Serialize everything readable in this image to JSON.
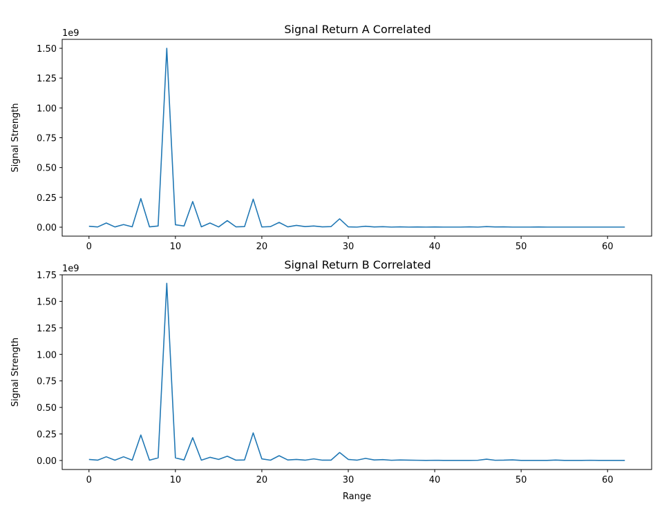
{
  "chart_data": [
    {
      "type": "line",
      "title": "Signal Return A Correlated",
      "xlabel": "",
      "ylabel": "Signal Strength",
      "y_offset_label": "1e9",
      "xlim": [
        -3.1,
        65.1
      ],
      "ylim": [
        -0.075,
        1.575
      ],
      "x_ticks": [
        0,
        10,
        20,
        30,
        40,
        50,
        60
      ],
      "x_tick_labels": [
        "0",
        "10",
        "20",
        "30",
        "40",
        "50",
        "60"
      ],
      "y_ticks": [
        0,
        0.25,
        0.5,
        0.75,
        1.0,
        1.25,
        1.5
      ],
      "y_tick_labels": [
        "0.00",
        "0.25",
        "0.50",
        "0.75",
        "1.00",
        "1.25",
        "1.50"
      ],
      "grid": false,
      "line_color": "#1f77b4",
      "series": [
        {
          "values": [
            0.008,
            0.002,
            0.035,
            0.002,
            0.022,
            0.003,
            0.24,
            0.003,
            0.01,
            1.5,
            0.02,
            0.01,
            0.215,
            0.003,
            0.035,
            0.002,
            0.055,
            0.003,
            0.005,
            0.235,
            0.002,
            0.005,
            0.04,
            0.003,
            0.015,
            0.005,
            0.01,
            0.003,
            0.005,
            0.07,
            0.003,
            0.001,
            0.008,
            0.002,
            0.004,
            0.001,
            0.003,
            0.001,
            0.002,
            0.001,
            0.002,
            0.001,
            0.001,
            0.001,
            0.003,
            0.001,
            0.005,
            0.002,
            0.003,
            0.001,
            0.001,
            0.001,
            0.002,
            0.001,
            0.001,
            0.001,
            0.001,
            0.001,
            0.001,
            0.001,
            0.001,
            0.001,
            0.001
          ]
        }
      ]
    },
    {
      "type": "line",
      "title": "Signal Return B Correlated",
      "xlabel": "Range",
      "ylabel": "Signal Strength",
      "y_offset_label": "1e9",
      "xlim": [
        -3.1,
        65.1
      ],
      "ylim": [
        -0.085,
        1.75
      ],
      "x_ticks": [
        0,
        10,
        20,
        30,
        40,
        50,
        60
      ],
      "x_tick_labels": [
        "0",
        "10",
        "20",
        "30",
        "40",
        "50",
        "60"
      ],
      "y_ticks": [
        0,
        0.25,
        0.5,
        0.75,
        1.0,
        1.25,
        1.5,
        1.75
      ],
      "y_tick_labels": [
        "0.00",
        "0.25",
        "0.50",
        "0.75",
        "1.00",
        "1.25",
        "1.50",
        "1.75"
      ],
      "grid": false,
      "line_color": "#1f77b4",
      "series": [
        {
          "values": [
            0.01,
            0.003,
            0.035,
            0.003,
            0.035,
            0.003,
            0.24,
            0.003,
            0.025,
            1.67,
            0.025,
            0.005,
            0.215,
            0.003,
            0.03,
            0.01,
            0.04,
            0.003,
            0.005,
            0.26,
            0.015,
            0.003,
            0.045,
            0.005,
            0.01,
            0.003,
            0.015,
            0.003,
            0.003,
            0.075,
            0.01,
            0.003,
            0.02,
            0.005,
            0.008,
            0.002,
            0.005,
            0.003,
            0.002,
            0.001,
            0.002,
            0.001,
            0.001,
            0.001,
            0.001,
            0.002,
            0.012,
            0.002,
            0.003,
            0.006,
            0.001,
            0.001,
            0.001,
            0.001,
            0.004,
            0.001,
            0.001,
            0.001,
            0.002,
            0.001,
            0.001,
            0.001,
            0.001
          ]
        }
      ]
    }
  ]
}
